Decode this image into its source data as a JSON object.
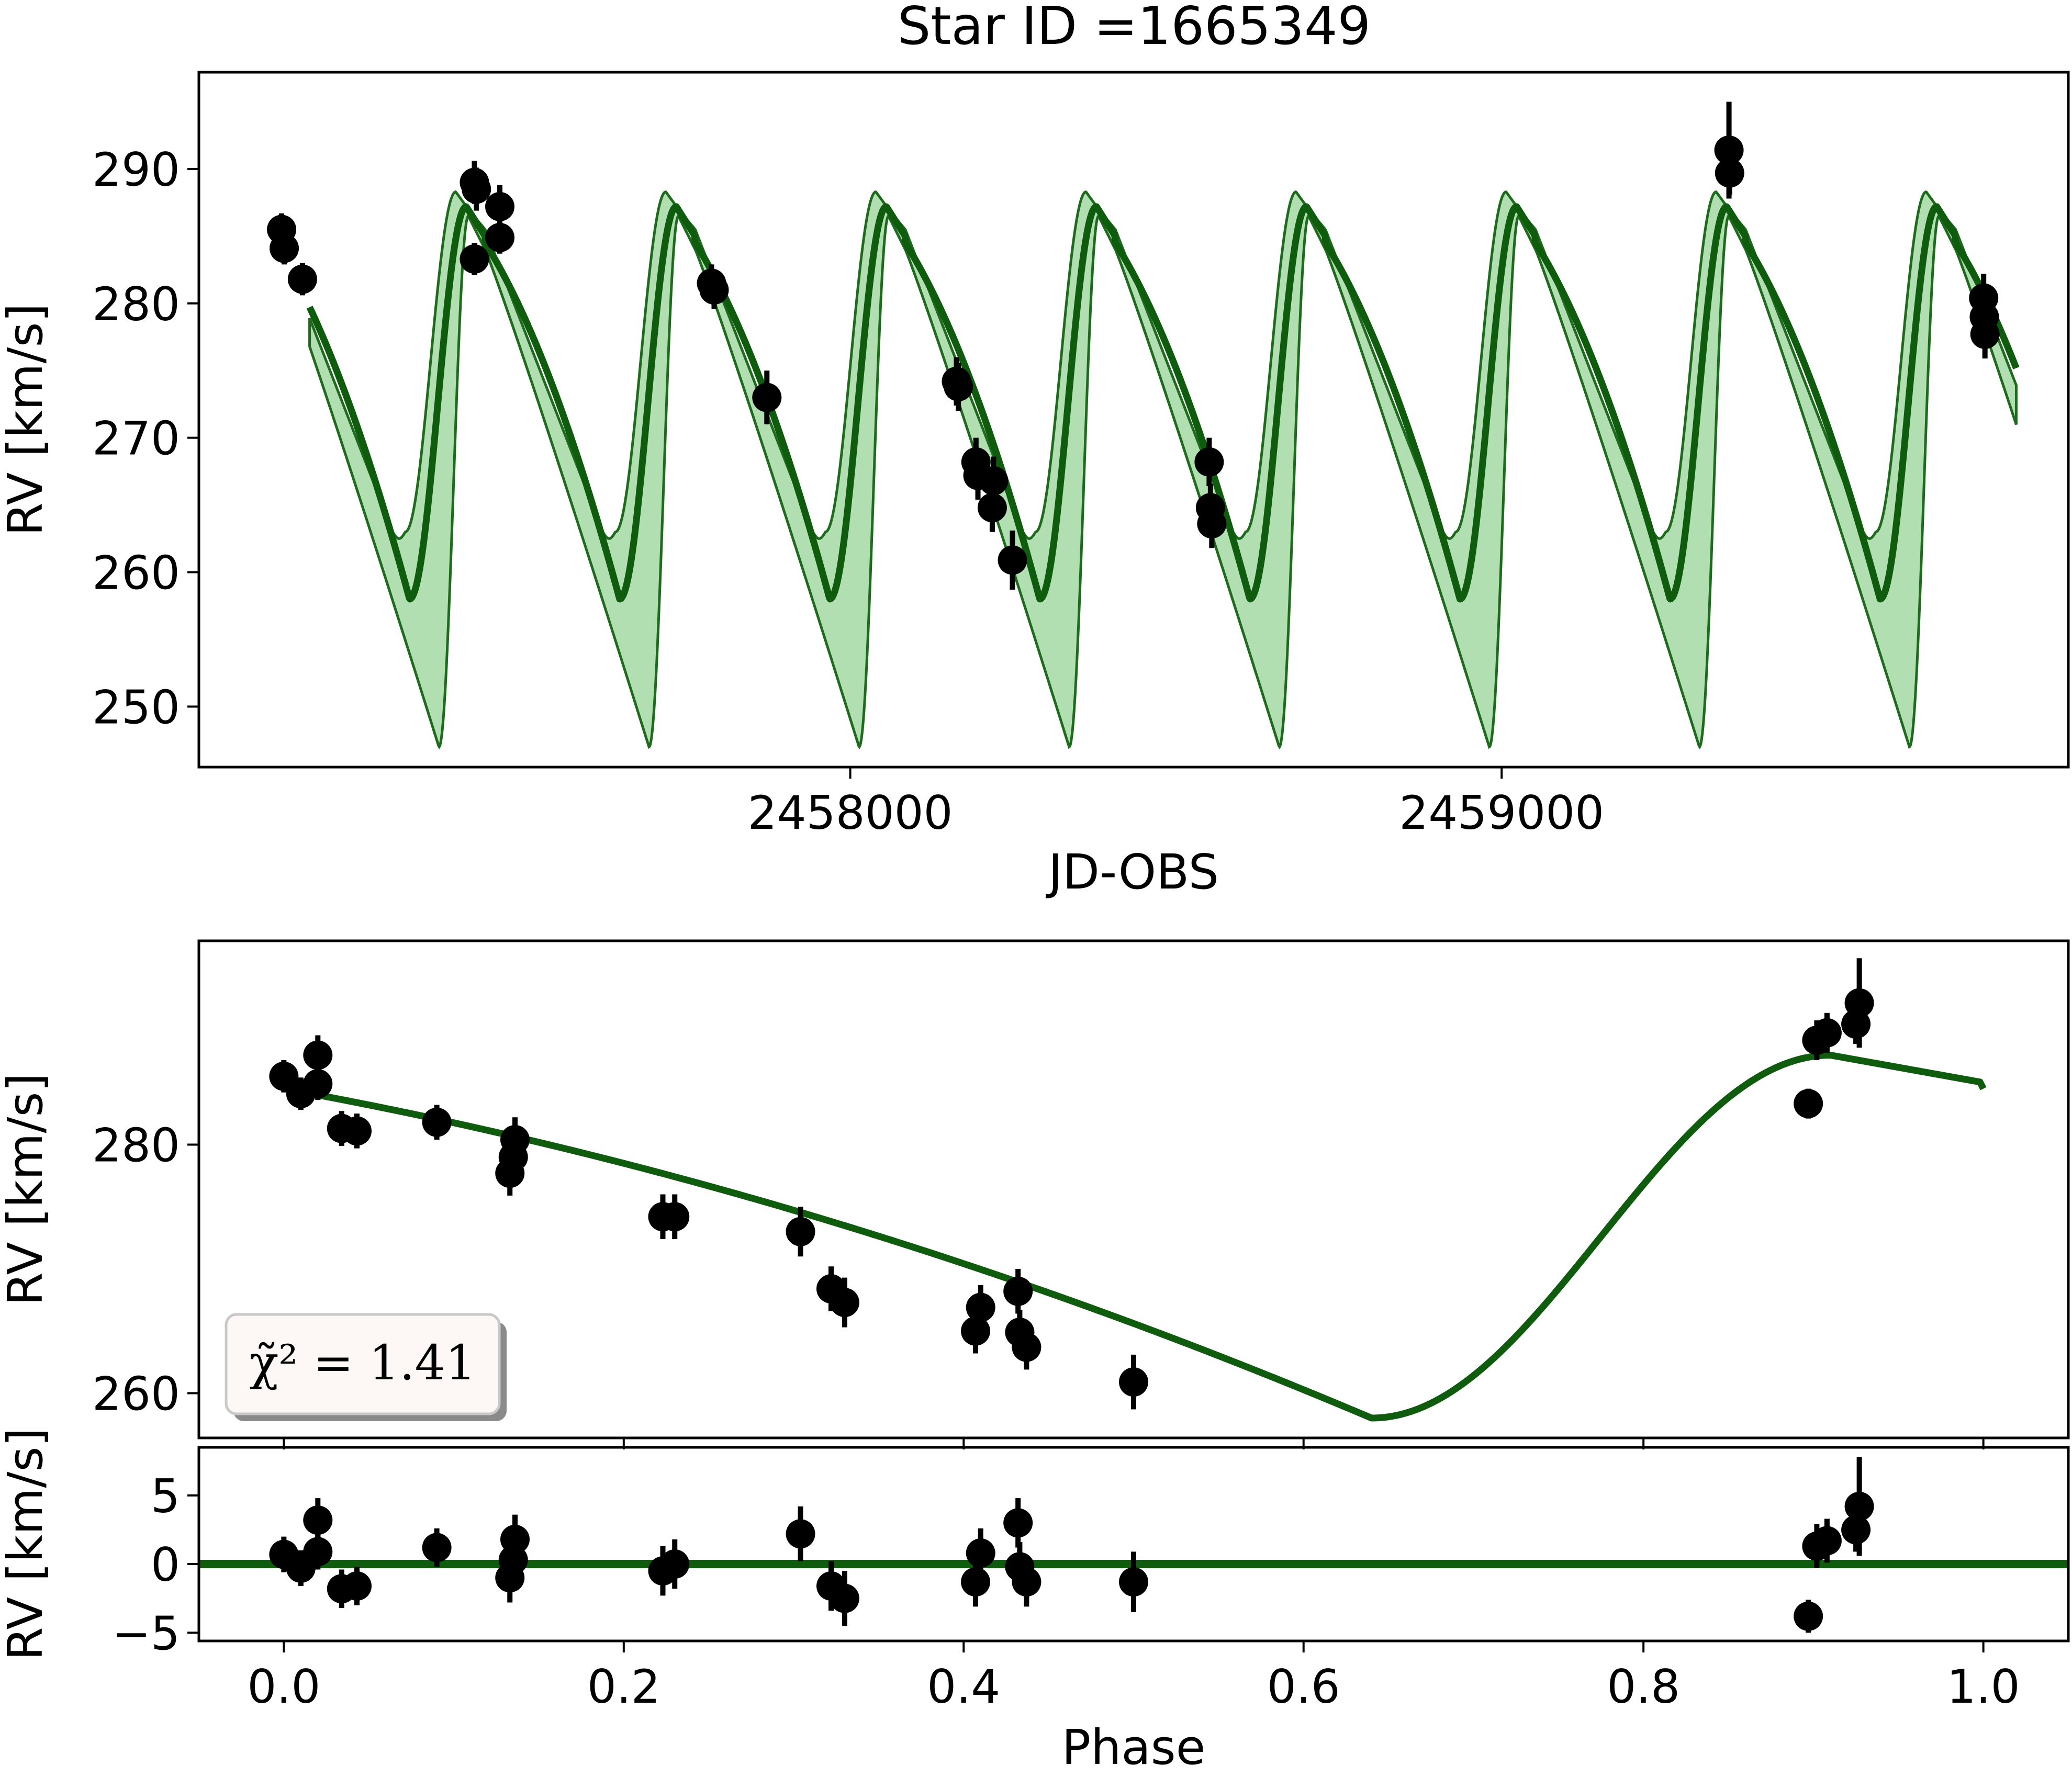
{
  "chart_data": [
    {
      "id": "top",
      "type": "line",
      "title": "Star ID =1665349",
      "xlabel": "JD-OBS",
      "ylabel": "RV [km/s]",
      "xlim": [
        2457000,
        2459870
      ],
      "ylim": [
        245.5,
        297.2
      ],
      "xticks": [
        2458000,
        2459000
      ],
      "xtick_labels": [
        "2458000",
        "2459000"
      ],
      "yticks": [
        250,
        260,
        270,
        280,
        290
      ],
      "ytick_labels": [
        "250",
        "260",
        "270",
        "280",
        "290"
      ],
      "model": {
        "period": 322.5,
        "x_start": 2457170,
        "x_end": 2459790
      },
      "points": [
        {
          "x": 2457127,
          "y": 285.5,
          "err": 1.2
        },
        {
          "x": 2457131,
          "y": 284.1,
          "err": 1.2
        },
        {
          "x": 2457159,
          "y": 281.8,
          "err": 1.2
        },
        {
          "x": 2457423,
          "y": 289.0,
          "err": 1.6
        },
        {
          "x": 2457426,
          "y": 288.5,
          "err": 1.6
        },
        {
          "x": 2457423,
          "y": 283.3,
          "err": 1.2
        },
        {
          "x": 2457462,
          "y": 287.2,
          "err": 1.6
        },
        {
          "x": 2457462,
          "y": 284.9,
          "err": 1.2
        },
        {
          "x": 2457787,
          "y": 281.5,
          "err": 1.4
        },
        {
          "x": 2457791,
          "y": 281.0,
          "err": 1.4
        },
        {
          "x": 2457872,
          "y": 273.0,
          "err": 2.0
        },
        {
          "x": 2458163,
          "y": 274.2,
          "err": 1.8
        },
        {
          "x": 2458166,
          "y": 273.8,
          "err": 1.8
        },
        {
          "x": 2458193,
          "y": 268.2,
          "err": 1.8
        },
        {
          "x": 2458196,
          "y": 267.2,
          "err": 1.8
        },
        {
          "x": 2458220,
          "y": 266.8,
          "err": 1.8
        },
        {
          "x": 2458218,
          "y": 264.8,
          "err": 1.8
        },
        {
          "x": 2458249,
          "y": 260.9,
          "err": 2.2
        },
        {
          "x": 2458551,
          "y": 268.2,
          "err": 1.8
        },
        {
          "x": 2458553,
          "y": 264.8,
          "err": 1.8
        },
        {
          "x": 2458555,
          "y": 263.6,
          "err": 1.8
        },
        {
          "x": 2459349,
          "y": 291.4,
          "err": 3.6
        },
        {
          "x": 2459350,
          "y": 289.7,
          "err": 1.6
        },
        {
          "x": 2459740,
          "y": 280.4,
          "err": 1.8
        },
        {
          "x": 2459741,
          "y": 279.0,
          "err": 1.8
        },
        {
          "x": 2459742,
          "y": 277.7,
          "err": 1.8
        }
      ]
    },
    {
      "id": "middle",
      "type": "line",
      "xlabel": "",
      "ylabel": "RV [km/s]",
      "xlim": [
        -0.05,
        1.05
      ],
      "ylim": [
        256.4,
        296.4
      ],
      "yticks": [
        260,
        280
      ],
      "ytick_labels": [
        "260",
        "280"
      ],
      "model_phase": [
        0.02,
        1.0
      ],
      "annotation": "χ̃² = 1.41",
      "points": [
        {
          "x": 0.0,
          "y": 285.5,
          "err": 1.3
        },
        {
          "x": 0.01,
          "y": 284.1,
          "err": 1.3
        },
        {
          "x": 0.02,
          "y": 287.2,
          "err": 1.6
        },
        {
          "x": 0.02,
          "y": 284.9,
          "err": 1.3
        },
        {
          "x": 0.034,
          "y": 281.3,
          "err": 1.4
        },
        {
          "x": 0.043,
          "y": 281.1,
          "err": 1.4
        },
        {
          "x": 0.09,
          "y": 281.8,
          "err": 1.4
        },
        {
          "x": 0.133,
          "y": 277.7,
          "err": 1.8
        },
        {
          "x": 0.135,
          "y": 279.0,
          "err": 1.8
        },
        {
          "x": 0.136,
          "y": 280.4,
          "err": 1.8
        },
        {
          "x": 0.223,
          "y": 274.2,
          "err": 1.8
        },
        {
          "x": 0.23,
          "y": 274.2,
          "err": 1.8
        },
        {
          "x": 0.304,
          "y": 273.0,
          "err": 2.0
        },
        {
          "x": 0.322,
          "y": 268.4,
          "err": 1.8
        },
        {
          "x": 0.33,
          "y": 267.3,
          "err": 2.0
        },
        {
          "x": 0.407,
          "y": 265.0,
          "err": 1.8
        },
        {
          "x": 0.41,
          "y": 266.9,
          "err": 1.8
        },
        {
          "x": 0.432,
          "y": 268.2,
          "err": 1.8
        },
        {
          "x": 0.433,
          "y": 264.9,
          "err": 1.8
        },
        {
          "x": 0.437,
          "y": 263.7,
          "err": 1.8
        },
        {
          "x": 0.5,
          "y": 260.9,
          "err": 2.2
        },
        {
          "x": 0.897,
          "y": 283.3,
          "err": 1.2
        },
        {
          "x": 0.902,
          "y": 288.4,
          "err": 1.6
        },
        {
          "x": 0.908,
          "y": 289.0,
          "err": 1.6
        },
        {
          "x": 0.925,
          "y": 289.7,
          "err": 1.6
        },
        {
          "x": 0.927,
          "y": 291.4,
          "err": 3.6
        }
      ]
    },
    {
      "id": "bottom",
      "type": "scatter",
      "xlabel": "Phase",
      "ylabel": "RV [km/s]",
      "xlim": [
        -0.05,
        1.05
      ],
      "ylim": [
        -5.6,
        8.5
      ],
      "xticks": [
        0.0,
        0.2,
        0.4,
        0.6,
        0.8,
        1.0
      ],
      "xtick_labels": [
        "0.0",
        "0.2",
        "0.4",
        "0.6",
        "0.8",
        "1.0"
      ],
      "yticks": [
        -5,
        0,
        5
      ],
      "ytick_labels": [
        "−5",
        "0",
        "5"
      ],
      "zero_line": 0,
      "points": [
        {
          "x": 0.0,
          "y": 0.7,
          "err": 1.3
        },
        {
          "x": 0.01,
          "y": -0.3,
          "err": 1.3
        },
        {
          "x": 0.02,
          "y": 3.2,
          "err": 1.6
        },
        {
          "x": 0.02,
          "y": 0.9,
          "err": 1.3
        },
        {
          "x": 0.034,
          "y": -1.8,
          "err": 1.4
        },
        {
          "x": 0.043,
          "y": -1.6,
          "err": 1.4
        },
        {
          "x": 0.09,
          "y": 1.2,
          "err": 1.4
        },
        {
          "x": 0.133,
          "y": -1.0,
          "err": 1.8
        },
        {
          "x": 0.135,
          "y": 0.3,
          "err": 1.8
        },
        {
          "x": 0.136,
          "y": 1.8,
          "err": 1.8
        },
        {
          "x": 0.223,
          "y": -0.5,
          "err": 1.8
        },
        {
          "x": 0.23,
          "y": 0.0,
          "err": 1.8
        },
        {
          "x": 0.304,
          "y": 2.2,
          "err": 2.0
        },
        {
          "x": 0.322,
          "y": -1.6,
          "err": 1.8
        },
        {
          "x": 0.33,
          "y": -2.5,
          "err": 2.0
        },
        {
          "x": 0.407,
          "y": -1.3,
          "err": 1.8
        },
        {
          "x": 0.41,
          "y": 0.8,
          "err": 1.8
        },
        {
          "x": 0.432,
          "y": 3.0,
          "err": 1.8
        },
        {
          "x": 0.433,
          "y": -0.2,
          "err": 1.8
        },
        {
          "x": 0.437,
          "y": -1.3,
          "err": 1.8
        },
        {
          "x": 0.5,
          "y": -1.3,
          "err": 2.2
        },
        {
          "x": 0.897,
          "y": -3.8,
          "err": 1.2
        },
        {
          "x": 0.902,
          "y": 1.3,
          "err": 1.6
        },
        {
          "x": 0.908,
          "y": 1.7,
          "err": 1.6
        },
        {
          "x": 0.925,
          "y": 2.5,
          "err": 1.6
        },
        {
          "x": 0.927,
          "y": 4.2,
          "err": 3.6
        }
      ]
    }
  ]
}
